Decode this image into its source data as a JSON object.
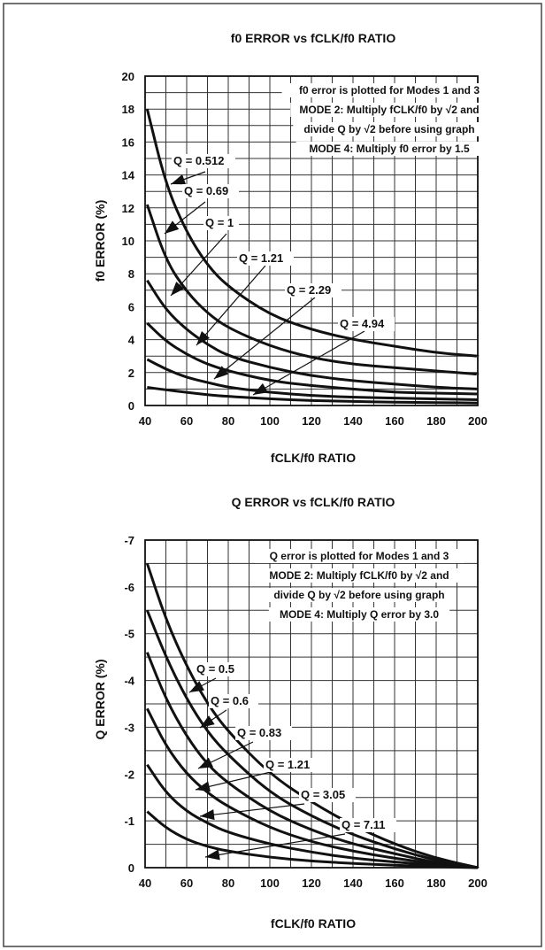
{
  "chart_data": [
    {
      "type": "line",
      "title": "f0 ERROR vs fCLK/f0 RATIO",
      "xlabel": "fCLK/f0 RATIO",
      "ylabel": "f0 ERROR (%)",
      "xlim": [
        40,
        200
      ],
      "ylim": [
        0,
        20
      ],
      "x_ticks": [
        40,
        60,
        80,
        100,
        120,
        140,
        160,
        180,
        200
      ],
      "y_ticks": [
        0,
        2,
        4,
        6,
        8,
        10,
        12,
        14,
        16,
        18,
        20
      ],
      "grid": true,
      "notes": [
        "f0 error is plotted for Modes 1 and 3",
        "MODE 2: Multiply fCLK/f0 by √2 and",
        "divide Q by √2 before using graph",
        "MODE 4: Multiply f0 error by 1.5"
      ],
      "series": [
        {
          "name": "Q = 0.512",
          "x": [
            41,
            50,
            60,
            70,
            80,
            100,
            120,
            140,
            160,
            180,
            200
          ],
          "y": [
            18.0,
            13.4,
            10.5,
            8.5,
            7.2,
            5.5,
            4.6,
            4.0,
            3.6,
            3.2,
            3.0
          ]
        },
        {
          "name": "Q = 0.69",
          "x": [
            41,
            50,
            60,
            70,
            80,
            100,
            120,
            140,
            160,
            180,
            200
          ],
          "y": [
            12.2,
            8.8,
            6.9,
            5.6,
            4.7,
            3.6,
            2.9,
            2.5,
            2.3,
            2.1,
            1.9
          ]
        },
        {
          "name": "Q = 1",
          "x": [
            41,
            50,
            60,
            70,
            80,
            100,
            120,
            140,
            160,
            180,
            200
          ],
          "y": [
            7.6,
            5.8,
            4.6,
            3.7,
            3.0,
            2.3,
            1.8,
            1.5,
            1.3,
            1.1,
            1.0
          ]
        },
        {
          "name": "Q = 1.21",
          "x": [
            41,
            50,
            60,
            70,
            80,
            100,
            120,
            140,
            160,
            180,
            200
          ],
          "y": [
            5.0,
            3.9,
            3.1,
            2.5,
            2.1,
            1.5,
            1.2,
            1.0,
            0.8,
            0.75,
            0.7
          ]
        },
        {
          "name": "Q = 2.29",
          "x": [
            41,
            50,
            60,
            70,
            80,
            100,
            120,
            140,
            160,
            180,
            200
          ],
          "y": [
            2.8,
            2.2,
            1.7,
            1.4,
            1.1,
            0.8,
            0.6,
            0.5,
            0.45,
            0.4,
            0.35
          ]
        },
        {
          "name": "Q = 4.94",
          "x": [
            41,
            50,
            60,
            70,
            80,
            100,
            120,
            140,
            160,
            180,
            200
          ],
          "y": [
            1.1,
            0.95,
            0.8,
            0.65,
            0.55,
            0.4,
            0.3,
            0.25,
            0.2,
            0.18,
            0.15
          ]
        }
      ]
    },
    {
      "type": "line",
      "title": "Q ERROR vs fCLK/f0 RATIO",
      "xlabel": "fCLK/f0 RATIO",
      "ylabel": "Q ERROR (%)",
      "xlim": [
        40,
        200
      ],
      "ylim": [
        0,
        -7
      ],
      "x_ticks": [
        40,
        60,
        80,
        100,
        120,
        140,
        160,
        180,
        200
      ],
      "y_ticks": [
        0,
        -1,
        -2,
        -3,
        -4,
        -5,
        -6,
        -7
      ],
      "grid": true,
      "notes": [
        "Q error is plotted for Modes 1 and 3",
        "MODE 2: Multiply fCLK/f0 by √2 and",
        "divide Q by √2 before using graph",
        "MODE 4: Multiply Q error by 3.0"
      ],
      "series": [
        {
          "name": "Q = 0.5",
          "x": [
            41,
            50,
            60,
            70,
            80,
            100,
            120,
            140,
            160,
            180,
            200
          ],
          "y": [
            -6.5,
            -5.3,
            -4.3,
            -3.5,
            -2.9,
            -2.0,
            -1.4,
            -0.9,
            -0.5,
            -0.2,
            0.0
          ]
        },
        {
          "name": "Q = 0.6",
          "x": [
            41,
            50,
            60,
            70,
            80,
            100,
            120,
            140,
            160,
            180,
            200
          ],
          "y": [
            -5.5,
            -4.5,
            -3.6,
            -2.9,
            -2.4,
            -1.6,
            -1.1,
            -0.7,
            -0.4,
            -0.15,
            0.0
          ]
        },
        {
          "name": "Q = 0.83",
          "x": [
            41,
            50,
            60,
            70,
            80,
            100,
            120,
            140,
            160,
            180,
            200
          ],
          "y": [
            -4.6,
            -3.6,
            -2.8,
            -2.2,
            -1.8,
            -1.2,
            -0.8,
            -0.5,
            -0.3,
            -0.1,
            0.0
          ]
        },
        {
          "name": "Q = 1.21",
          "x": [
            41,
            50,
            60,
            70,
            80,
            100,
            120,
            140,
            160,
            180,
            200
          ],
          "y": [
            -3.4,
            -2.6,
            -2.0,
            -1.6,
            -1.3,
            -0.85,
            -0.55,
            -0.35,
            -0.2,
            -0.08,
            0.0
          ]
        },
        {
          "name": "Q = 3.05",
          "x": [
            41,
            50,
            60,
            70,
            80,
            100,
            120,
            140,
            160,
            180,
            200
          ],
          "y": [
            -2.2,
            -1.6,
            -1.2,
            -0.95,
            -0.75,
            -0.5,
            -0.33,
            -0.2,
            -0.12,
            -0.05,
            0.0
          ]
        },
        {
          "name": "Q = 7.11",
          "x": [
            41,
            50,
            60,
            70,
            80,
            100,
            120,
            140,
            160,
            180,
            200
          ],
          "y": [
            -1.2,
            -0.85,
            -0.6,
            -0.45,
            -0.35,
            -0.22,
            -0.14,
            -0.09,
            -0.05,
            -0.02,
            0.0
          ]
        }
      ]
    }
  ]
}
